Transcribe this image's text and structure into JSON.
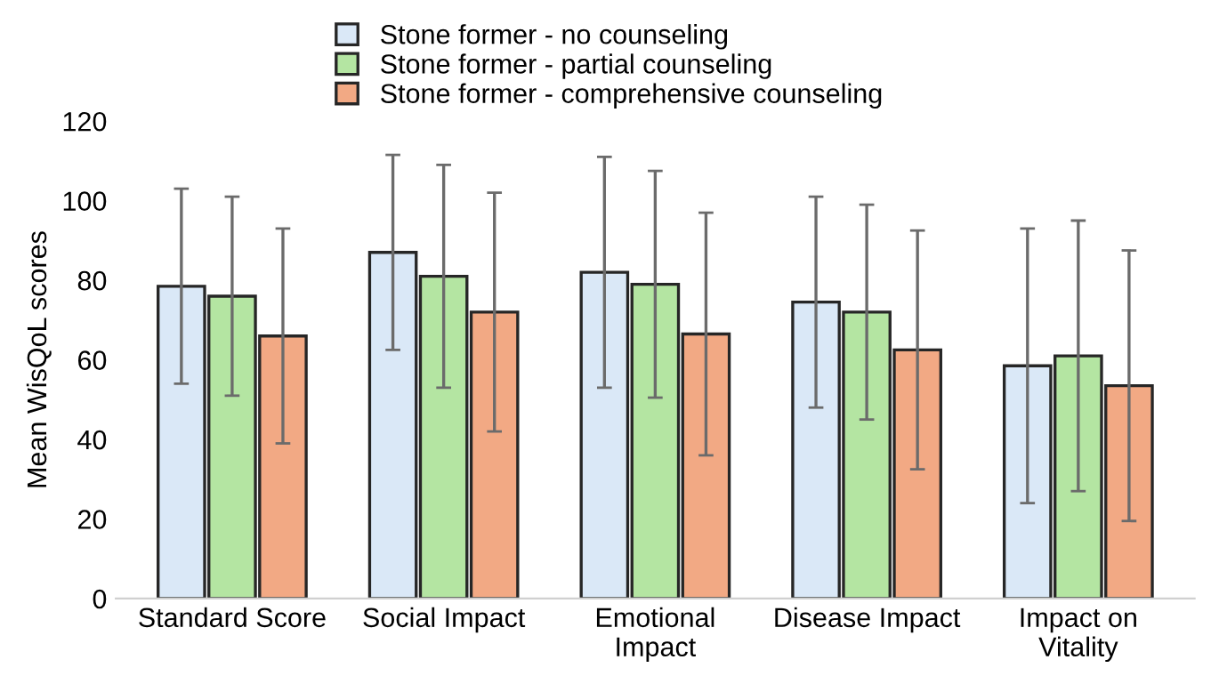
{
  "chart_data": {
    "type": "bar",
    "ylabel": "Mean WisQoL scores",
    "categories": [
      "Standard Score",
      "Social Impact",
      "Emotional\nImpact",
      "Disease Impact",
      "Impact on\nVitality"
    ],
    "series": [
      {
        "name": "Stone former - no counseling",
        "color": "#dae8f7",
        "values": [
          78.5,
          87,
          82,
          74.5,
          58.5
        ],
        "errors": [
          24.5,
          24.5,
          29,
          26.5,
          34.5
        ]
      },
      {
        "name": "Stone former - partial counseling",
        "color": "#b4e5a2",
        "values": [
          76,
          81,
          79,
          72,
          61
        ],
        "errors": [
          25,
          28,
          28.5,
          27,
          34
        ]
      },
      {
        "name": "Stone former - comprehensive counseling",
        "color": "#f2a984",
        "values": [
          66,
          72,
          66.5,
          62.5,
          53.5
        ],
        "errors": [
          27,
          30,
          30.5,
          30,
          34
        ]
      }
    ],
    "ylim": [
      0,
      120
    ],
    "yticks": [
      0,
      20,
      40,
      60,
      80,
      100,
      120
    ],
    "grid": false,
    "legend": "top"
  }
}
